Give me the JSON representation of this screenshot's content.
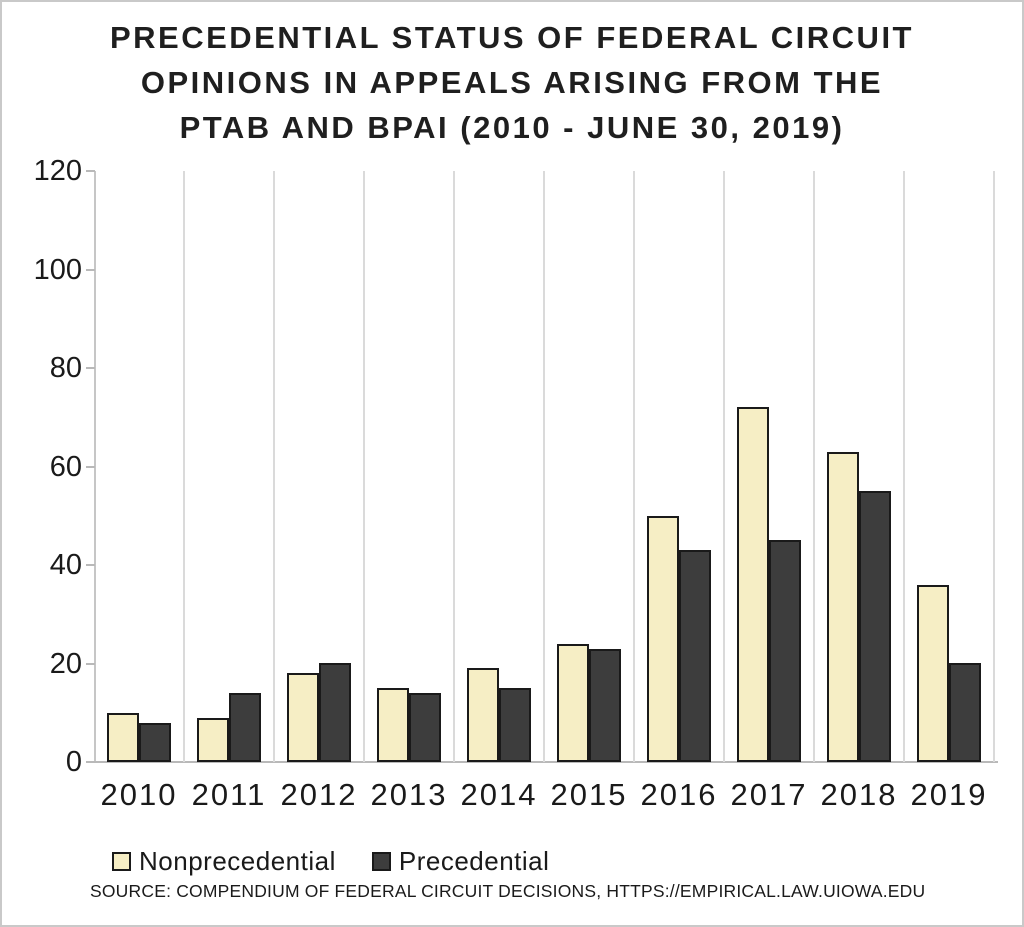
{
  "title": {
    "lines": [
      "PRECEDENTIAL STATUS OF FEDERAL CIRCUIT",
      "OPINIONS IN APPEALS ARISING FROM THE",
      "PTAB AND BPAI (2010 - JUNE 30, 2019)"
    ]
  },
  "chart_data": {
    "type": "bar",
    "title": "PRECEDENTIAL STATUS OF FEDERAL CIRCUIT OPINIONS IN APPEALS ARISING FROM THE PTAB AND BPAI (2010 - JUNE 30, 2019)",
    "categories": [
      "2010",
      "2011",
      "2012",
      "2013",
      "2014",
      "2015",
      "2016",
      "2017",
      "2018",
      "2019"
    ],
    "series": [
      {
        "name": "Nonprecedential",
        "color": "#F6EEC5",
        "values": [
          10,
          9,
          18,
          15,
          19,
          24,
          50,
          72,
          63,
          36
        ]
      },
      {
        "name": "Precedential",
        "color": "#3D3D3D",
        "values": [
          8,
          14,
          20,
          14,
          15,
          23,
          43,
          45,
          55,
          20
        ]
      }
    ],
    "xlabel": "",
    "ylabel": "",
    "ylim": [
      0,
      120
    ],
    "yticks": [
      0,
      20,
      40,
      60,
      80,
      100,
      120
    ],
    "grid": "vertical-category-separators-only",
    "legend_position": "bottom-left",
    "bar_border_color": "#1A1A1A"
  },
  "source": "SOURCE: COMPENDIUM OF FEDERAL CIRCUIT DECISIONS, HTTPS://EMPIRICAL.LAW.UIOWA.EDU",
  "colors": {
    "nonprecedential": "#F6EEC5",
    "precedential": "#3D3D3D",
    "gridline": "#DADADA",
    "axis": "#B9B9B9",
    "text": "#1A1A1A"
  }
}
